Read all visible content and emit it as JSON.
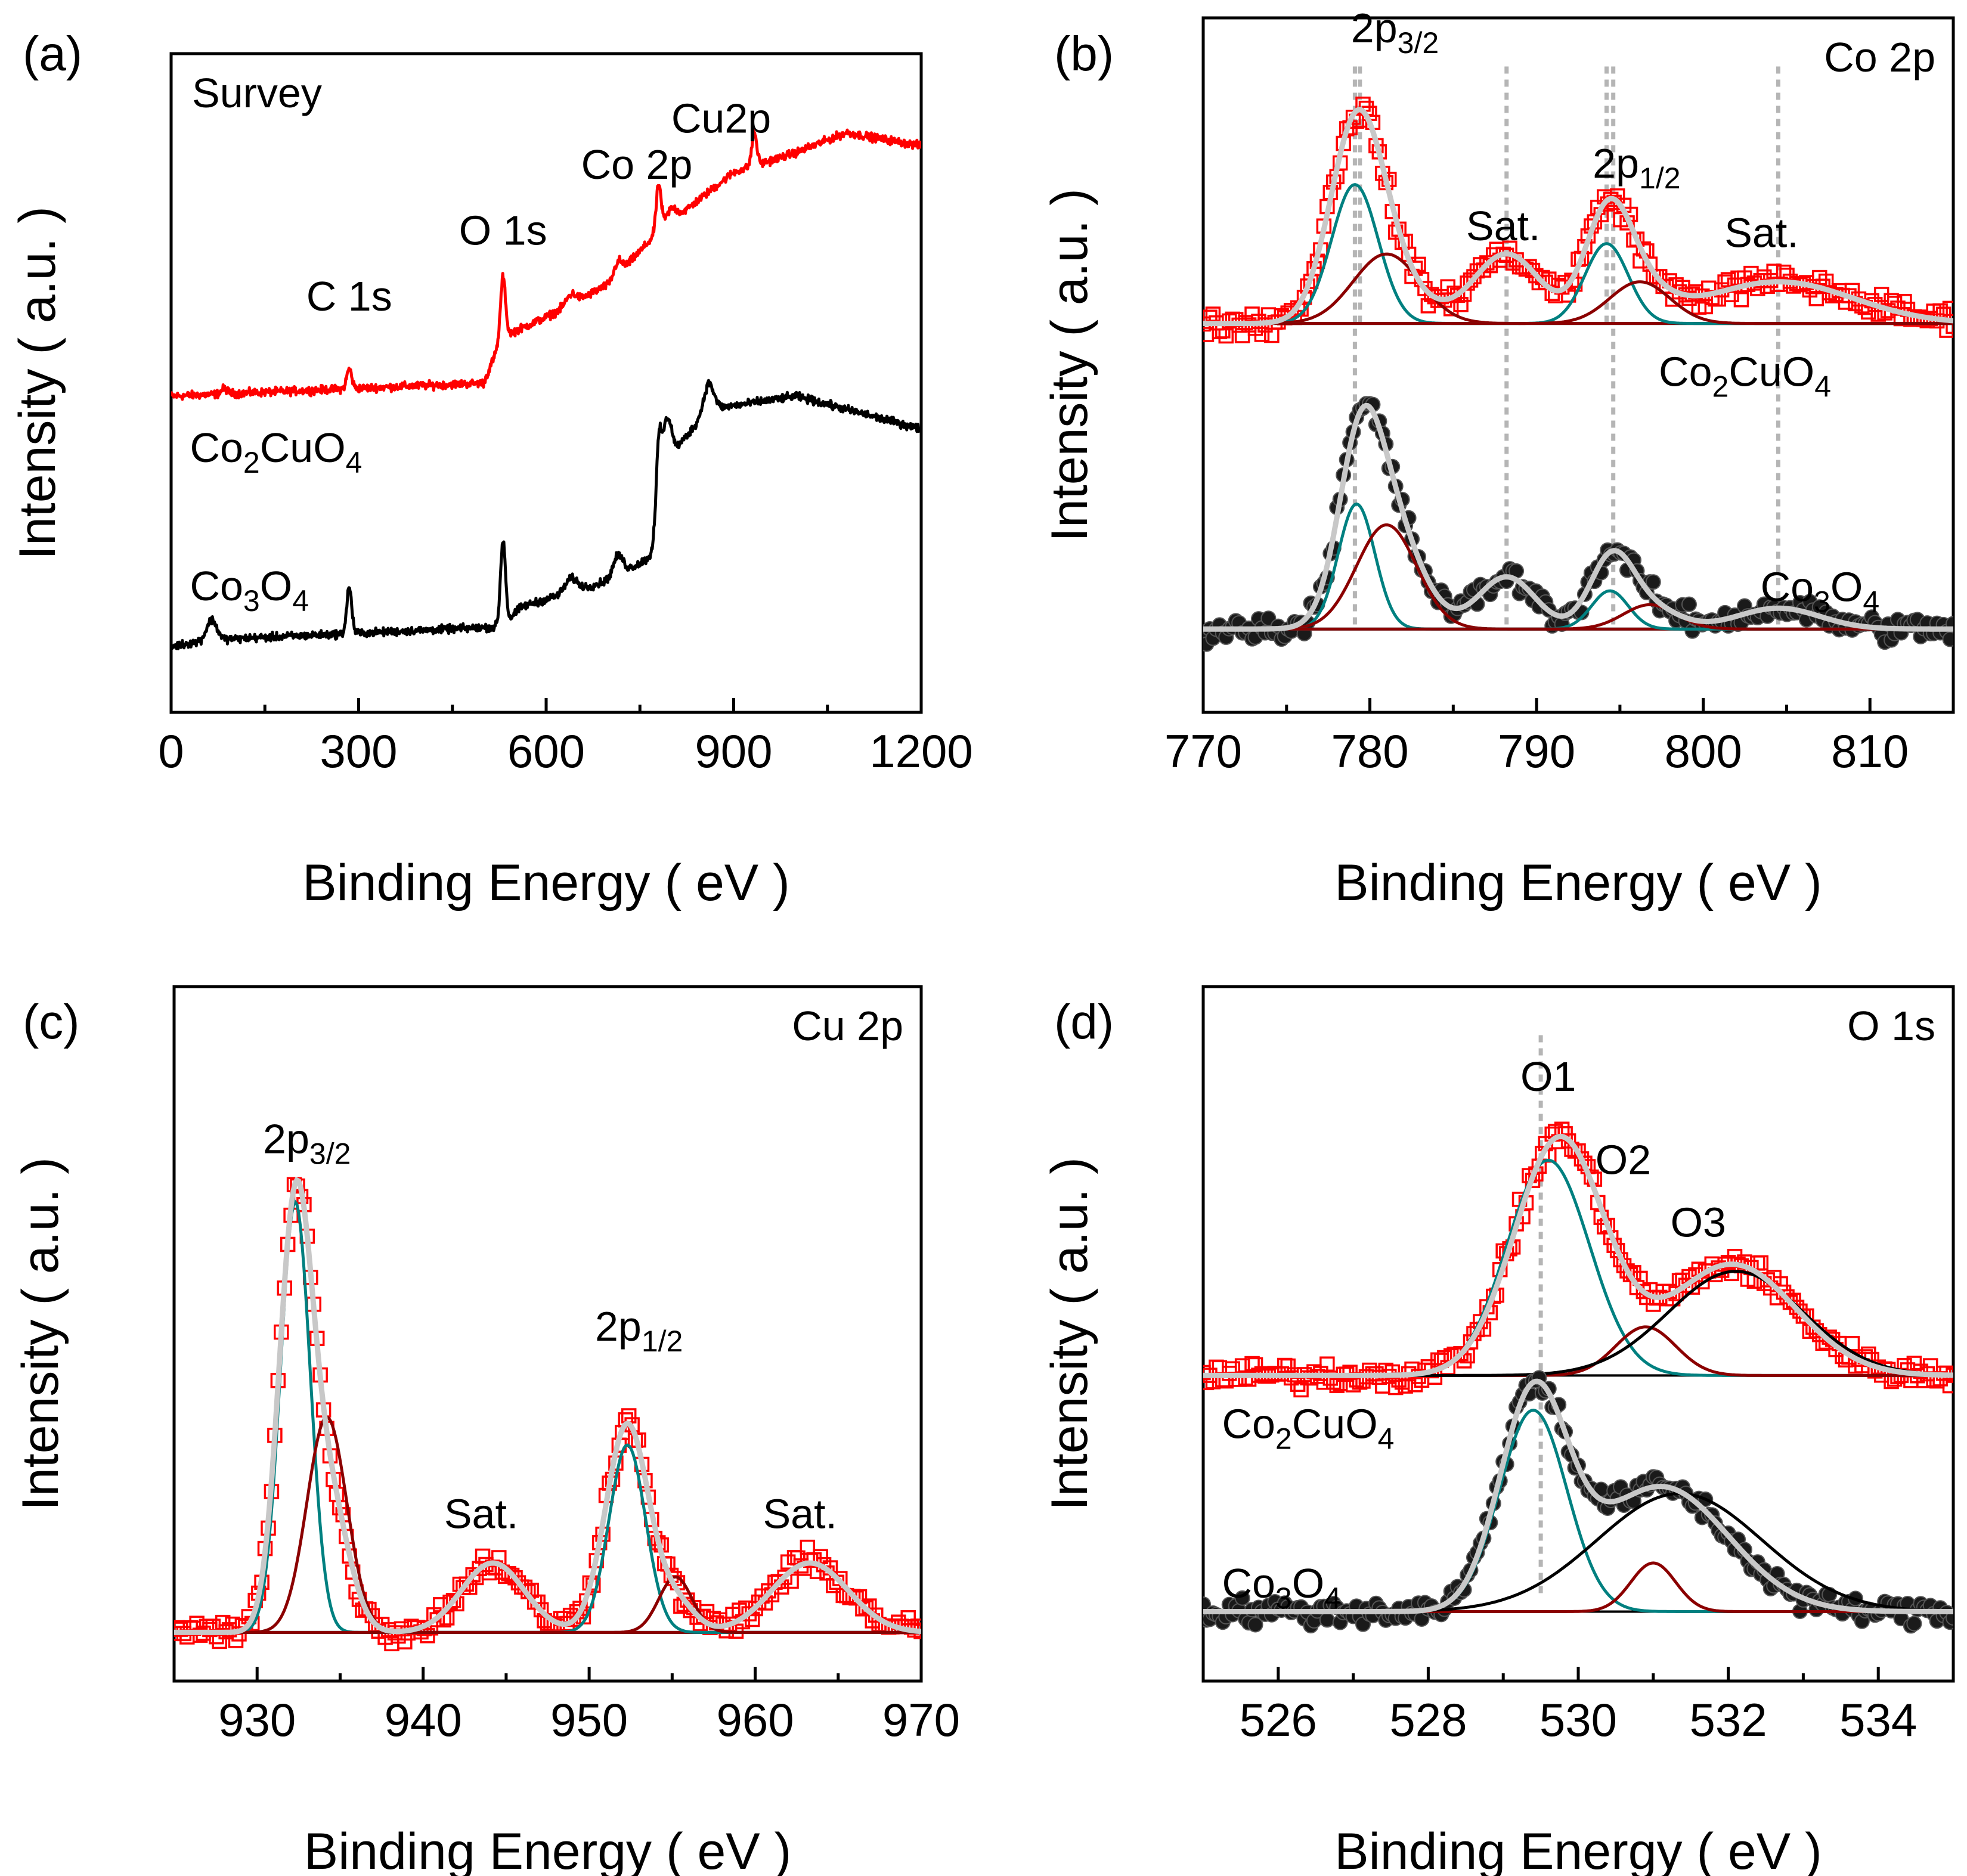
{
  "chart_data": [
    {
      "id": "a",
      "type": "line",
      "panel_label": "(a)",
      "corner_label": "Survey",
      "xlabel": "Binding Energy ( eV )",
      "ylabel": "Intensity ( a.u. )",
      "xlim": [
        0,
        1200
      ],
      "ylim": [
        0,
        1
      ],
      "xticks": [
        0,
        300,
        600,
        900,
        1200
      ],
      "series": [
        {
          "name": "Co2CuO4",
          "color": "#ff0000",
          "baseline": 0.48,
          "peaks": [
            [
              85,
              0.008,
              5
            ],
            [
              285,
              0.03,
              4
            ],
            [
              531,
              0.09,
              4
            ],
            [
              640,
              0.015,
              8
            ],
            [
              715,
              0.02,
              6
            ],
            [
              780,
              0.07,
              4
            ],
            [
              800,
              0.02,
              8
            ],
            [
              933,
              0.05,
              4
            ]
          ],
          "background": [
            [
              0,
              0
            ],
            [
              500,
              0.02
            ],
            [
              530,
              0.09
            ],
            [
              600,
              0.12
            ],
            [
              700,
              0.17
            ],
            [
              780,
              0.25
            ],
            [
              900,
              0.34
            ],
            [
              1000,
              0.37
            ],
            [
              1080,
              0.4
            ],
            [
              1200,
              0.38
            ]
          ]
        },
        {
          "name": "Co3O4",
          "color": "#000000",
          "baseline": 0.1,
          "peaks": [
            [
              65,
              0.03,
              8
            ],
            [
              285,
              0.07,
              4
            ],
            [
              531,
              0.13,
              4
            ],
            [
              640,
              0.02,
              10
            ],
            [
              715,
              0.03,
              8
            ],
            [
              780,
              0.13,
              5
            ],
            [
              795,
              0.06,
              6
            ],
            [
              860,
              0.04,
              8
            ]
          ],
          "background": [
            [
              0,
              0
            ],
            [
              60,
              0.01
            ],
            [
              530,
              0.03
            ],
            [
              560,
              0.06
            ],
            [
              700,
              0.1
            ],
            [
              775,
              0.14
            ],
            [
              790,
              0.28
            ],
            [
              860,
              0.36
            ],
            [
              1000,
              0.38
            ],
            [
              1200,
              0.33
            ]
          ]
        }
      ],
      "annotations": [
        {
          "key": "c1s",
          "x": 285,
          "y": 0.61
        },
        {
          "key": "o1s",
          "x": 531,
          "y": 0.71
        },
        {
          "key": "co2p",
          "x": 745,
          "y": 0.81
        },
        {
          "key": "cu2p",
          "x": 880,
          "y": 0.88
        }
      ],
      "labels": {
        "c1s": "C 1s",
        "o1s": "O 1s",
        "co2p": "Co 2p",
        "cu2p": "Cu2p"
      },
      "sample_labels": [
        {
          "base": "Co",
          "sub1": "2",
          "mid": "CuO",
          "sub2": "4",
          "x": 30,
          "y": 0.38
        },
        {
          "base": "Co",
          "sub1": "3",
          "mid": "O",
          "sub2": "4",
          "x": 30,
          "y": 0.17
        }
      ]
    },
    {
      "id": "b",
      "type": "line",
      "panel_label": "(b)",
      "corner_label": "Co 2p",
      "xlabel": "Binding Energy ( eV )",
      "ylabel": "Intensity ( a.u. )",
      "xlim": [
        770,
        815
      ],
      "ylim": [
        0,
        1
      ],
      "xticks": [
        770,
        780,
        790,
        800,
        810
      ],
      "series": [
        {
          "name": "Co2CuO4",
          "color": "#ff0000",
          "marker": "square",
          "baseline": 0.56,
          "components": [
            {
              "color": "#008080",
              "peaks": [
                [
                  779.1,
                  0.2,
                  1.4
                ]
              ]
            },
            {
              "color": "#8b0000",
              "peaks": [
                [
                  781.0,
                  0.1,
                  2.0
                ]
              ]
            },
            {
              "color": "#008080",
              "peaks": [
                [
                  794.2,
                  0.115,
                  1.3
                ]
              ]
            },
            {
              "color": "#8b0000",
              "peaks": [
                [
                  796.2,
                  0.06,
                  1.8
                ]
              ]
            }
          ],
          "envelope_peaks": [
            [
              779.2,
              0.27,
              1.6
            ],
            [
              781.2,
              0.06,
              2.0
            ],
            [
              788.2,
              0.1,
              2.0
            ],
            [
              794.3,
              0.15,
              1.4
            ],
            [
              796.2,
              0.04,
              1.8
            ],
            [
              804.5,
              0.06,
              4.5
            ]
          ]
        },
        {
          "name": "Co3O4",
          "color": "#000000",
          "marker": "circle",
          "baseline": 0.12,
          "components": [
            {
              "color": "#008080",
              "peaks": [
                [
                  779.2,
                  0.18,
                  1.1
                ]
              ]
            },
            {
              "color": "#8b0000",
              "peaks": [
                [
                  781.0,
                  0.15,
                  1.8
                ]
              ]
            },
            {
              "color": "#008080",
              "peaks": [
                [
                  794.4,
                  0.055,
                  1.1
                ]
              ]
            },
            {
              "color": "#8b0000",
              "peaks": [
                [
                  796.8,
                  0.035,
                  1.6
                ]
              ]
            }
          ],
          "envelope_peaks": [
            [
              779.4,
              0.2,
              1.3
            ],
            [
              781.0,
              0.16,
              1.9
            ],
            [
              788.2,
              0.075,
              1.7
            ],
            [
              794.5,
              0.1,
              1.3
            ],
            [
              796.8,
              0.03,
              1.7
            ],
            [
              804.5,
              0.03,
              2.5
            ]
          ]
        }
      ],
      "guides_x": [
        779.1,
        788.2,
        794.6,
        804.5
      ],
      "guides_x_top": [
        779.4,
        794.2
      ],
      "annotations": [
        {
          "key": "sat1",
          "x": 788.0,
          "y": 0.68
        },
        {
          "key": "sat2",
          "x": 803.5,
          "y": 0.67
        }
      ],
      "labels": {
        "sat1": "Sat.",
        "sat2": "Sat."
      },
      "peak_labels": [
        {
          "base": "2p",
          "sub": "3/2",
          "x": 781.5,
          "y": 0.965
        },
        {
          "base": "2p",
          "sub": "1/2",
          "x": 796.0,
          "y": 0.77
        }
      ],
      "sample_labels": [
        {
          "base": "Co",
          "sub1": "2",
          "mid": "CuO",
          "sub2": "4",
          "x": 802.5,
          "y": 0.47
        },
        {
          "base": "Co",
          "sub1": "3",
          "mid": "O",
          "sub2": "4",
          "x": 807.0,
          "y": 0.16
        }
      ]
    },
    {
      "id": "c",
      "type": "line",
      "panel_label": "(c)",
      "corner_label": "Cu 2p",
      "xlabel": "Binding Energy ( eV )",
      "ylabel": "Intensity ( a.u. )",
      "xlim": [
        925,
        970
      ],
      "ylim": [
        0,
        1
      ],
      "xticks": [
        930,
        940,
        950,
        960,
        970
      ],
      "series": [
        {
          "name": "Co2CuO4",
          "color": "#ff0000",
          "marker": "square",
          "baseline": 0.07,
          "components": [
            {
              "color": "#008080",
              "peaks": [
                [
                  932.3,
                  0.62,
                  0.9
                ]
              ]
            },
            {
              "color": "#8b0000",
              "peaks": [
                [
                  934.2,
                  0.31,
                  1.2
                ]
              ]
            },
            {
              "color": "#008080",
              "peaks": [
                [
                  952.3,
                  0.27,
                  1.1
                ]
              ]
            },
            {
              "color": "#8b0000",
              "peaks": [
                [
                  955.2,
                  0.08,
                  1.0
                ]
              ]
            }
          ],
          "envelope_peaks": [
            [
              932.3,
              0.6,
              1.0
            ],
            [
              934.3,
              0.19,
              1.2
            ],
            [
              944.2,
              0.1,
              1.9
            ],
            [
              952.3,
              0.3,
              1.3
            ],
            [
              955.3,
              0.04,
              1.1
            ],
            [
              963.3,
              0.1,
              2.3
            ]
          ]
        }
      ],
      "annotations": [
        {
          "key": "sat1",
          "x": 943.5,
          "y": 0.22
        },
        {
          "key": "sat2",
          "x": 962.7,
          "y": 0.22
        }
      ],
      "labels": {
        "sat1": "Sat.",
        "sat2": "Sat."
      },
      "peak_labels": [
        {
          "base": "2p",
          "sub": "3/2",
          "x": 933.0,
          "y": 0.76
        },
        {
          "base": "2p",
          "sub": "1/2",
          "x": 953.0,
          "y": 0.49
        }
      ],
      "sample_labels": []
    },
    {
      "id": "d",
      "type": "line",
      "panel_label": "(d)",
      "corner_label": "O 1s",
      "xlabel": "Binding Energy ( eV )",
      "ylabel": "Intensity ( a.u. )",
      "xlim": [
        525,
        535
      ],
      "ylim": [
        0,
        1
      ],
      "xticks": [
        526,
        528,
        530,
        532,
        534
      ],
      "series": [
        {
          "name": "Co2CuO4",
          "color": "#ff0000",
          "marker": "square",
          "baseline": 0.44,
          "components": [
            {
              "color": "#008080",
              "peaks": [
                [
                  529.6,
                  0.31,
                  0.55
                ]
              ]
            },
            {
              "color": "#8b0000",
              "peaks": [
                [
                  530.9,
                  0.07,
                  0.4
                ]
              ]
            },
            {
              "color": "#000000",
              "peaks": [
                [
                  532.1,
                  0.15,
                  0.9
                ]
              ]
            }
          ],
          "envelope_peaks": [
            [
              529.75,
              0.34,
              0.6
            ],
            [
              532.05,
              0.16,
              0.85
            ]
          ]
        },
        {
          "name": "Co3O4",
          "color": "#000000",
          "marker": "circle",
          "baseline": 0.1,
          "components": [
            {
              "color": "#008080",
              "peaks": [
                [
                  529.4,
                  0.29,
                  0.45
                ]
              ]
            },
            {
              "color": "#8b0000",
              "peaks": [
                [
                  531.0,
                  0.07,
                  0.3
                ]
              ]
            },
            {
              "color": "#000000",
              "peaks": [
                [
                  531.35,
                  0.17,
                  1.1
                ]
              ]
            }
          ],
          "envelope_peaks": [
            [
              529.4,
              0.3,
              0.45
            ],
            [
              531.1,
              0.18,
              0.9
            ]
          ]
        }
      ],
      "guides_x": [
        529.5
      ],
      "annotations": [
        {
          "key": "o1",
          "x": 529.6,
          "y": 0.85
        },
        {
          "key": "o2",
          "x": 530.6,
          "y": 0.73
        },
        {
          "key": "o3",
          "x": 531.6,
          "y": 0.64
        }
      ],
      "labels": {
        "o1": "O1",
        "o2": "O2",
        "o3": "O3"
      },
      "sample_labels": [
        {
          "base": "Co",
          "sub1": "2",
          "mid": "CuO",
          "sub2": "4",
          "x": 525.25,
          "y": 0.35
        },
        {
          "base": "Co",
          "sub1": "3",
          "mid": "O",
          "sub2": "4",
          "x": 525.25,
          "y": 0.12
        }
      ]
    }
  ]
}
